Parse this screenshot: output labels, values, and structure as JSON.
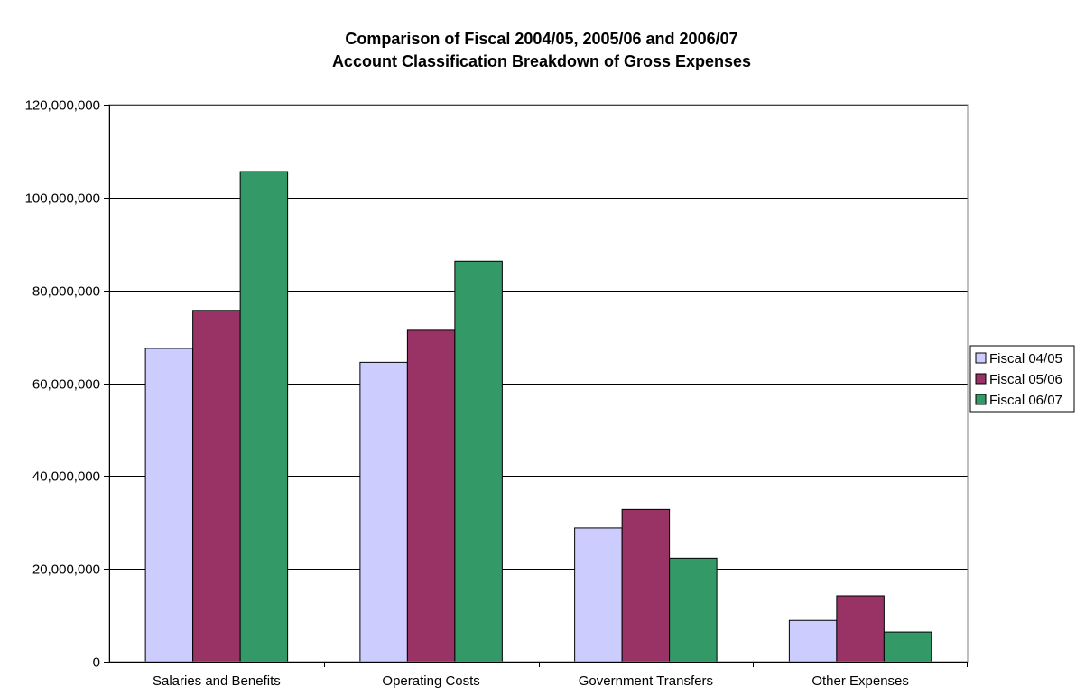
{
  "chart_data": {
    "type": "bar",
    "title": "Comparison of Fiscal  2004/05, 2005/06 and 2006/07",
    "subtitle": "Account Classification Breakdown of Gross Expenses",
    "xlabel": "",
    "ylabel": "",
    "categories": [
      "Salaries and Benefits",
      "Operating Costs",
      "Government Transfers",
      "Other Expenses"
    ],
    "series": [
      {
        "name": "Fiscal 04/05",
        "color": "#ccccff",
        "values": [
          67500000,
          64500000,
          28800000,
          8900000
        ]
      },
      {
        "name": "Fiscal 05/06",
        "color": "#993366",
        "values": [
          75700000,
          71400000,
          32800000,
          14200000
        ]
      },
      {
        "name": "Fiscal 06/07",
        "color": "#339966",
        "values": [
          105600000,
          86300000,
          22300000,
          6400000
        ]
      }
    ],
    "ylim": [
      0,
      120000000
    ],
    "yticks": [
      0,
      20000000,
      40000000,
      60000000,
      80000000,
      100000000,
      120000000
    ],
    "ytick_labels": [
      "0",
      "20,000,000",
      "40,000,000",
      "60,000,000",
      "80,000,000",
      "100,000,000",
      "120,000,000"
    ],
    "grid": true,
    "legend_position": "right"
  }
}
